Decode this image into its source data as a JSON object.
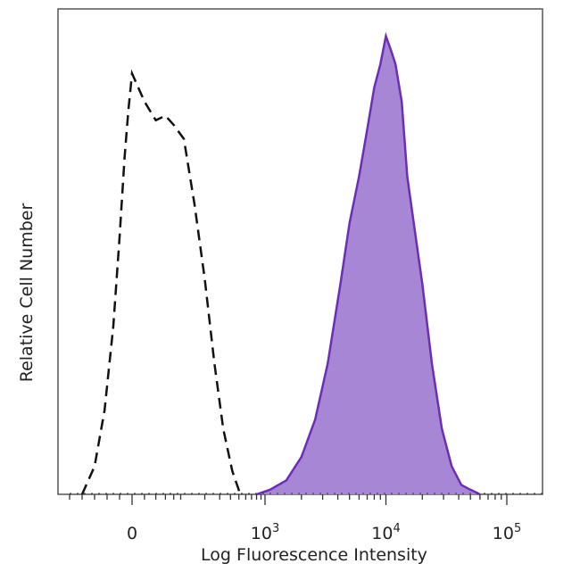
{
  "chart_data": {
    "type": "area",
    "xlabel": "Log Fluorescence Intensity",
    "ylabel": "Relative Cell Number",
    "x_scale": "biexponential",
    "x_tick_labels": [
      {
        "value": 0,
        "base": "0",
        "exp": ""
      },
      {
        "value": 1000,
        "base": "10",
        "exp": "3"
      },
      {
        "value": 10000,
        "base": "10",
        "exp": "4"
      },
      {
        "value": 100000,
        "base": "10",
        "exp": "5"
      }
    ],
    "ylim": [
      0,
      100
    ],
    "grid": false,
    "series": [
      {
        "style": "dashed-outline",
        "color": "#111111",
        "x": [
          -400,
          -300,
          -220,
          -150,
          -100,
          -60,
          -30,
          0,
          20,
          40,
          60,
          80,
          110,
          150,
          200,
          260,
          330,
          420,
          520
        ],
        "y": [
          0,
          6,
          18,
          36,
          55,
          72,
          82,
          90,
          84,
          80,
          81,
          79,
          76,
          62,
          46,
          28,
          14,
          5,
          0
        ]
      },
      {
        "style": "filled",
        "color": "#6a2fb3",
        "fill": "#a886d6",
        "x": [
          800,
          1100,
          1500,
          2000,
          2600,
          3300,
          4200,
          5000,
          6000,
          7000,
          8000,
          9000,
          10000,
          11000,
          12000,
          13500,
          15000,
          17000,
          20000,
          24000,
          29000,
          35000,
          42000,
          50000,
          60000
        ],
        "y": [
          0,
          1,
          3,
          8,
          16,
          28,
          45,
          58,
          68,
          78,
          87,
          92,
          98,
          95,
          92,
          84,
          68,
          58,
          45,
          28,
          14,
          6,
          2,
          1,
          0
        ]
      }
    ]
  }
}
